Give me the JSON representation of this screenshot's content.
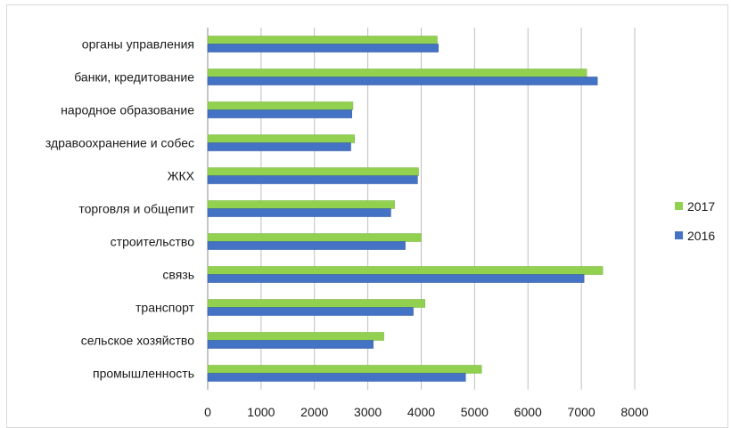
{
  "chart_data": {
    "type": "bar",
    "orientation": "horizontal",
    "categories": [
      "органы управления",
      "банки, кредитование",
      "народное образование",
      "здравоохранение и собес",
      "ЖКХ",
      "торговля и общепит",
      "строительство",
      "связь",
      "транспорт",
      "сельское хозяйство",
      "промышленность"
    ],
    "series": [
      {
        "name": "2017",
        "color": "#92d050",
        "values": [
          4300,
          7100,
          2720,
          2750,
          3950,
          3500,
          4000,
          7400,
          4070,
          3300,
          5130
        ]
      },
      {
        "name": "2016",
        "color": "#4472c4",
        "values": [
          4320,
          7300,
          2700,
          2680,
          3930,
          3430,
          3700,
          7050,
          3850,
          3100,
          4830
        ]
      }
    ],
    "x_ticks": [
      "0",
      "1000",
      "2000",
      "3000",
      "4000",
      "5000",
      "6000",
      "7000",
      "8000"
    ],
    "xlim": [
      0,
      8000
    ],
    "grid": "vertical",
    "legend": {
      "position": "right",
      "entries": [
        "2017",
        "2016"
      ]
    },
    "title": "",
    "xlabel": "",
    "ylabel": ""
  }
}
